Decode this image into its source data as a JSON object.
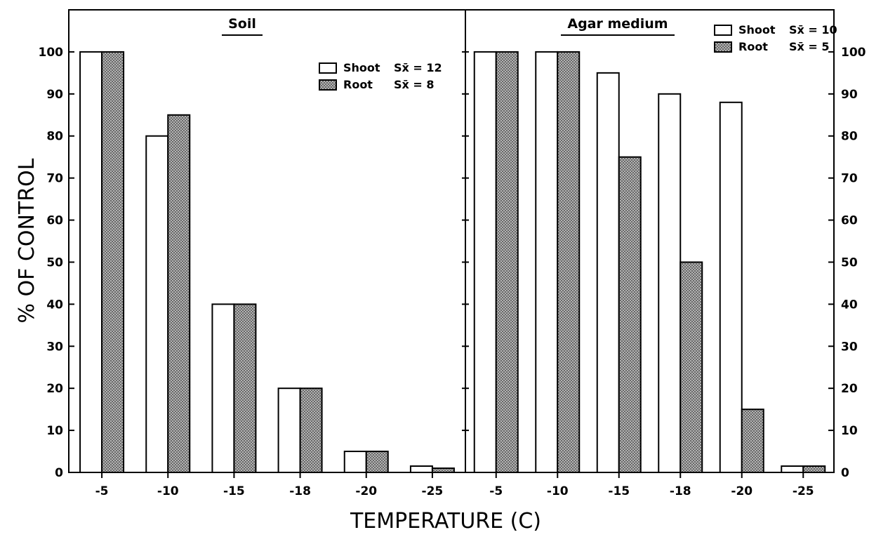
{
  "chart_data": {
    "type": "bar",
    "ylabel": "% OF CONTROL",
    "xlabel": "TEMPERATURE (C)",
    "ylim": [
      0,
      110
    ],
    "yticks": [
      0,
      10,
      20,
      30,
      40,
      50,
      60,
      70,
      80,
      90,
      100
    ],
    "legend_position": "top-right of each panel",
    "colors": {
      "shoot": "#ffffff",
      "root": "#9a9a9a",
      "stroke": "#000000"
    },
    "panels": [
      {
        "title": "Soil",
        "categories": [
          "-5",
          "-10",
          "-15",
          "-18",
          "-20",
          "-25"
        ],
        "series": [
          {
            "name": "Shoot",
            "sx_label": "Sx̄ = 12",
            "values": [
              100,
              80,
              40,
              20,
              5,
              1.5
            ]
          },
          {
            "name": "Root",
            "sx_label": "Sx̄ = 8",
            "values": [
              100,
              85,
              40,
              20,
              5,
              1
            ]
          }
        ]
      },
      {
        "title": "Agar medium",
        "categories": [
          "-5",
          "-10",
          "-15",
          "-18",
          "-20",
          "-25"
        ],
        "series": [
          {
            "name": "Shoot",
            "sx_label": "Sx̄ = 10",
            "values": [
              100,
              100,
              95,
              90,
              88,
              1.5
            ]
          },
          {
            "name": "Root",
            "sx_label": "Sx̄ = 5",
            "values": [
              100,
              100,
              75,
              50,
              15,
              1.5
            ]
          }
        ]
      }
    ]
  }
}
